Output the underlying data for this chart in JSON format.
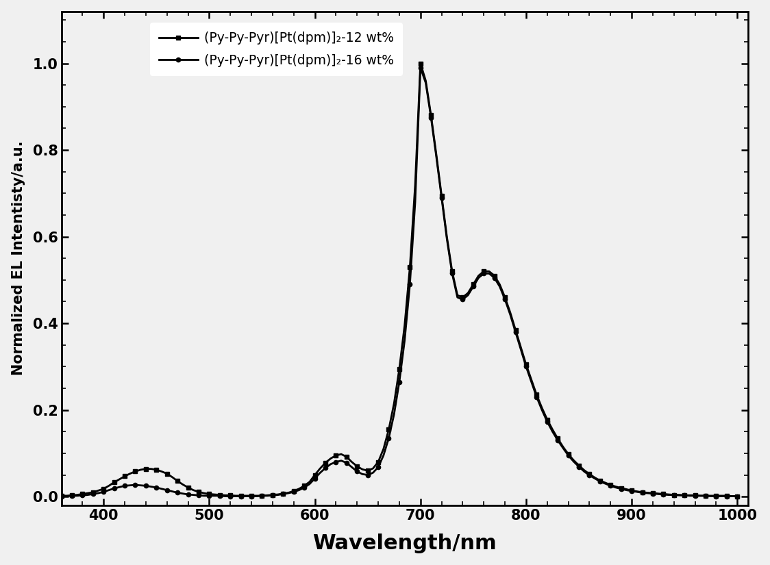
{
  "xlabel": "Wavelength/nm",
  "ylabel": "Normalized EL Intentisty/a.u.",
  "xlim": [
    360,
    1010
  ],
  "ylim": [
    -0.02,
    1.12
  ],
  "xticks": [
    400,
    500,
    600,
    700,
    800,
    900,
    1000
  ],
  "yticks": [
    0.0,
    0.2,
    0.4,
    0.6,
    0.8,
    1.0
  ],
  "legend1": "(Py-Py-Pyr)[Pt(dpm)]₂-12 wt%",
  "legend2": "(Py-Py-Pyr)[Pt(dpm)]₂-16 wt%",
  "color": "#000000",
  "series1_x": [
    360,
    365,
    370,
    375,
    380,
    385,
    390,
    395,
    400,
    405,
    410,
    415,
    420,
    425,
    430,
    435,
    440,
    445,
    450,
    455,
    460,
    465,
    470,
    475,
    480,
    485,
    490,
    495,
    500,
    505,
    510,
    515,
    520,
    525,
    530,
    535,
    540,
    545,
    550,
    555,
    560,
    565,
    570,
    575,
    580,
    585,
    590,
    595,
    600,
    605,
    610,
    615,
    620,
    625,
    630,
    635,
    640,
    645,
    650,
    655,
    660,
    665,
    670,
    675,
    680,
    685,
    690,
    695,
    700,
    705,
    710,
    715,
    720,
    725,
    730,
    735,
    740,
    745,
    750,
    755,
    760,
    765,
    770,
    775,
    780,
    785,
    790,
    795,
    800,
    805,
    810,
    815,
    820,
    825,
    830,
    835,
    840,
    845,
    850,
    855,
    860,
    865,
    870,
    875,
    880,
    885,
    890,
    895,
    900,
    905,
    910,
    915,
    920,
    925,
    930,
    935,
    940,
    945,
    950,
    955,
    960,
    965,
    970,
    975,
    980,
    985,
    990,
    995,
    1000
  ],
  "series1_y": [
    0.002,
    0.002,
    0.003,
    0.004,
    0.006,
    0.008,
    0.01,
    0.014,
    0.018,
    0.025,
    0.033,
    0.04,
    0.047,
    0.053,
    0.058,
    0.062,
    0.064,
    0.064,
    0.062,
    0.058,
    0.053,
    0.045,
    0.036,
    0.028,
    0.021,
    0.015,
    0.011,
    0.008,
    0.006,
    0.005,
    0.004,
    0.003,
    0.003,
    0.002,
    0.002,
    0.002,
    0.002,
    0.002,
    0.002,
    0.003,
    0.004,
    0.005,
    0.007,
    0.009,
    0.013,
    0.018,
    0.025,
    0.034,
    0.05,
    0.065,
    0.078,
    0.088,
    0.095,
    0.098,
    0.092,
    0.08,
    0.07,
    0.063,
    0.06,
    0.065,
    0.08,
    0.11,
    0.155,
    0.215,
    0.295,
    0.395,
    0.53,
    0.72,
    1.0,
    0.96,
    0.88,
    0.79,
    0.695,
    0.6,
    0.52,
    0.465,
    0.46,
    0.47,
    0.49,
    0.51,
    0.52,
    0.52,
    0.51,
    0.49,
    0.46,
    0.425,
    0.385,
    0.345,
    0.305,
    0.27,
    0.235,
    0.205,
    0.178,
    0.155,
    0.134,
    0.115,
    0.098,
    0.084,
    0.072,
    0.061,
    0.052,
    0.044,
    0.037,
    0.032,
    0.027,
    0.023,
    0.02,
    0.017,
    0.014,
    0.012,
    0.01,
    0.009,
    0.008,
    0.007,
    0.006,
    0.005,
    0.004,
    0.004,
    0.003,
    0.003,
    0.003,
    0.002,
    0.002,
    0.002,
    0.002,
    0.002,
    0.002,
    0.001,
    0.001
  ],
  "series2_x": [
    360,
    365,
    370,
    375,
    380,
    385,
    390,
    395,
    400,
    405,
    410,
    415,
    420,
    425,
    430,
    435,
    440,
    445,
    450,
    455,
    460,
    465,
    470,
    475,
    480,
    485,
    490,
    495,
    500,
    505,
    510,
    515,
    520,
    525,
    530,
    535,
    540,
    545,
    550,
    555,
    560,
    565,
    570,
    575,
    580,
    585,
    590,
    595,
    600,
    605,
    610,
    615,
    620,
    625,
    630,
    635,
    640,
    645,
    650,
    655,
    660,
    665,
    670,
    675,
    680,
    685,
    690,
    695,
    700,
    705,
    710,
    715,
    720,
    725,
    730,
    735,
    740,
    745,
    750,
    755,
    760,
    765,
    770,
    775,
    780,
    785,
    790,
    795,
    800,
    805,
    810,
    815,
    820,
    825,
    830,
    835,
    840,
    845,
    850,
    855,
    860,
    865,
    870,
    875,
    880,
    885,
    890,
    895,
    900,
    905,
    910,
    915,
    920,
    925,
    930,
    935,
    940,
    945,
    950,
    955,
    960,
    965,
    970,
    975,
    980,
    985,
    990,
    995,
    1000
  ],
  "series2_y": [
    0.001,
    0.001,
    0.002,
    0.002,
    0.003,
    0.004,
    0.006,
    0.008,
    0.011,
    0.015,
    0.019,
    0.022,
    0.025,
    0.026,
    0.027,
    0.026,
    0.025,
    0.023,
    0.021,
    0.018,
    0.015,
    0.012,
    0.009,
    0.007,
    0.005,
    0.004,
    0.003,
    0.002,
    0.002,
    0.002,
    0.002,
    0.001,
    0.001,
    0.001,
    0.001,
    0.001,
    0.001,
    0.001,
    0.002,
    0.002,
    0.003,
    0.004,
    0.006,
    0.008,
    0.011,
    0.015,
    0.021,
    0.029,
    0.042,
    0.055,
    0.066,
    0.075,
    0.08,
    0.083,
    0.078,
    0.068,
    0.058,
    0.052,
    0.05,
    0.055,
    0.068,
    0.095,
    0.135,
    0.19,
    0.265,
    0.36,
    0.49,
    0.68,
    0.99,
    0.955,
    0.875,
    0.785,
    0.69,
    0.595,
    0.515,
    0.46,
    0.455,
    0.465,
    0.485,
    0.505,
    0.515,
    0.515,
    0.505,
    0.485,
    0.455,
    0.42,
    0.38,
    0.34,
    0.3,
    0.265,
    0.23,
    0.2,
    0.173,
    0.15,
    0.13,
    0.112,
    0.095,
    0.081,
    0.069,
    0.058,
    0.049,
    0.042,
    0.035,
    0.03,
    0.025,
    0.021,
    0.018,
    0.015,
    0.013,
    0.011,
    0.009,
    0.008,
    0.007,
    0.006,
    0.005,
    0.004,
    0.004,
    0.003,
    0.003,
    0.002,
    0.002,
    0.002,
    0.002,
    0.001,
    0.001,
    0.001,
    0.001,
    0.001,
    0.001
  ]
}
